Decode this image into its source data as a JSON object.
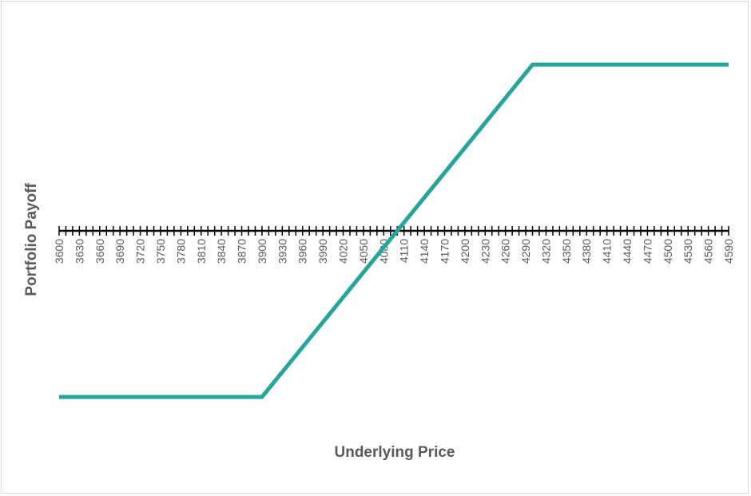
{
  "chart_data": {
    "type": "line",
    "title": "",
    "xlabel": "Underlying Price",
    "ylabel": "Portfolio Payoff",
    "xlim": [
      3600,
      4590
    ],
    "ylim": [
      -250,
      250
    ],
    "x_tick_step": 30,
    "x_minor_tick_step": 10,
    "y_tick_labels_shown": false,
    "grid": false,
    "legend": "none",
    "line_color": "#26A69A",
    "axis_color": "#000000",
    "series": [
      {
        "x": [
          3600,
          3700,
          3800,
          3890,
          3900,
          4000,
          4100,
          4200,
          4300,
          4400,
          4500,
          4590
        ],
        "values": [
          -200,
          -200,
          -200,
          -200,
          -200,
          -100,
          0,
          100,
          200,
          200,
          200,
          200
        ]
      }
    ]
  }
}
